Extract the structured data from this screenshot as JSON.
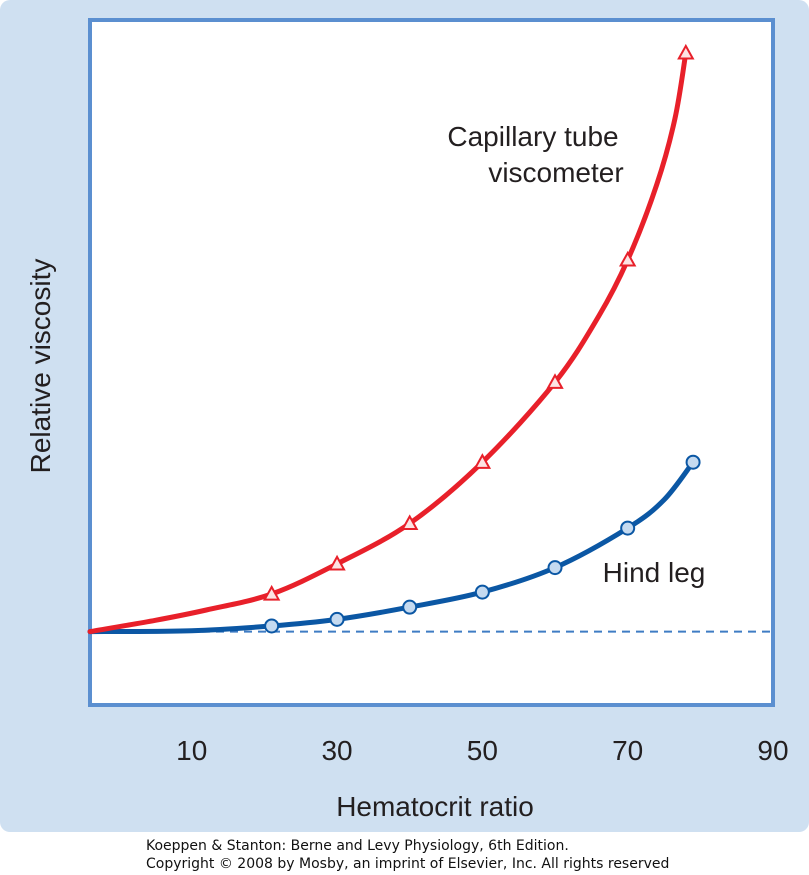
{
  "colors": {
    "panel_background": "#cfe0f1",
    "plot_background": "#ffffff",
    "axis_frame": "#5b8fd0",
    "capillary_series": "#e8202a",
    "capillary_marker_fill": "#fde3e3",
    "hind_leg_series": "#0b57a4",
    "hind_leg_marker_fill": "#c5daf0",
    "baseline": "#3f7cc4"
  },
  "chart_data": {
    "type": "line",
    "title": "",
    "xlabel": "Hematocrit ratio",
    "ylabel": "Relative viscosity",
    "xlim": [
      -4,
      90
    ],
    "ylim": [
      -0.78,
      6.5
    ],
    "x_ticks": [
      10,
      30,
      50,
      70,
      90
    ],
    "y_ticks": [],
    "grid": false,
    "legend": "none (series labeled directly on the plot)",
    "baseline": {
      "y": 0,
      "style": "dashed"
    },
    "series": [
      {
        "name": "Capillary tube viscometer",
        "label_lines": [
          "Capillary tube",
          "viscometer"
        ],
        "marker": "triangle",
        "curve": [
          {
            "x": -4,
            "y": 0
          },
          {
            "x": 5,
            "y": 0.12
          },
          {
            "x": 12,
            "y": 0.23
          },
          {
            "x": 21,
            "y": 0.4
          },
          {
            "x": 30,
            "y": 0.72
          },
          {
            "x": 40,
            "y": 1.15
          },
          {
            "x": 50,
            "y": 1.8
          },
          {
            "x": 60,
            "y": 2.65
          },
          {
            "x": 66,
            "y": 3.35
          },
          {
            "x": 70,
            "y": 3.95
          },
          {
            "x": 74,
            "y": 4.75
          },
          {
            "x": 76.5,
            "y": 5.45
          },
          {
            "x": 78,
            "y": 6.15
          }
        ],
        "markers": [
          {
            "x": 21,
            "y": 0.4
          },
          {
            "x": 30,
            "y": 0.72
          },
          {
            "x": 40,
            "y": 1.15
          },
          {
            "x": 50,
            "y": 1.8
          },
          {
            "x": 60,
            "y": 2.65
          },
          {
            "x": 70,
            "y": 3.95
          },
          {
            "x": 78,
            "y": 6.15
          }
        ]
      },
      {
        "name": "Hind leg",
        "label_lines": [
          "Hind leg"
        ],
        "marker": "circle",
        "curve": [
          {
            "x": -4,
            "y": 0
          },
          {
            "x": 10,
            "y": 0.01
          },
          {
            "x": 21,
            "y": 0.06
          },
          {
            "x": 30,
            "y": 0.13
          },
          {
            "x": 40,
            "y": 0.26
          },
          {
            "x": 50,
            "y": 0.42
          },
          {
            "x": 60,
            "y": 0.68
          },
          {
            "x": 70,
            "y": 1.1
          },
          {
            "x": 75,
            "y": 1.4
          },
          {
            "x": 79,
            "y": 1.8
          }
        ],
        "markers": [
          {
            "x": 21,
            "y": 0.06
          },
          {
            "x": 30,
            "y": 0.13
          },
          {
            "x": 40,
            "y": 0.26
          },
          {
            "x": 50,
            "y": 0.42
          },
          {
            "x": 60,
            "y": 0.68
          },
          {
            "x": 70,
            "y": 1.1
          },
          {
            "x": 79,
            "y": 1.8
          }
        ]
      }
    ]
  },
  "credit": {
    "line1": "Koeppen & Stanton: Berne and Levy Physiology, 6th Edition.",
    "line2": "Copyright © 2008 by Mosby, an imprint of Elsevier, Inc. All rights reserved"
  }
}
